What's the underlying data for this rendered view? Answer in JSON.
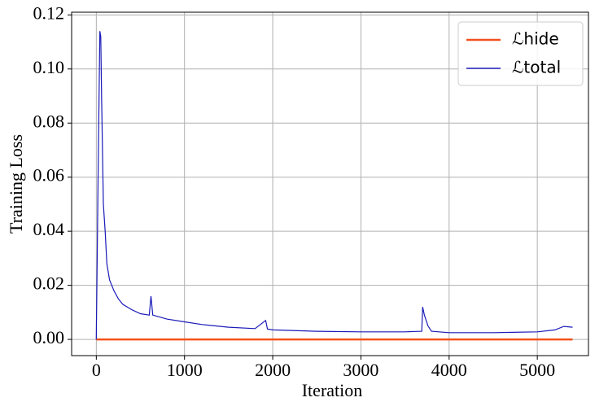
{
  "chart_data": {
    "type": "line",
    "xlabel": "Iteration",
    "ylabel": "Training Loss",
    "xlim": [
      -280,
      5580
    ],
    "ylim": [
      -0.006,
      0.121
    ],
    "xticks": [
      0,
      1000,
      2000,
      3000,
      4000,
      5000
    ],
    "yticks": [
      {
        "value": 0,
        "label": "0.00"
      },
      {
        "value": 0.02,
        "label": "0.02"
      },
      {
        "value": 0.04,
        "label": "0.04"
      },
      {
        "value": 0.06,
        "label": "0.06"
      },
      {
        "value": 0.08,
        "label": "0.08"
      },
      {
        "value": 0.1,
        "label": "0.10"
      },
      {
        "value": 0.12,
        "label": "0.12"
      }
    ],
    "grid": true,
    "legend": "upper right",
    "series": [
      {
        "name": "ℒhide",
        "color": "#f4511e",
        "x": [
          0,
          5400
        ],
        "values": [
          0,
          0
        ]
      },
      {
        "name": "ℒtotal",
        "color": "#1a1ab8",
        "x": [
          0,
          20,
          40,
          50,
          60,
          80,
          100,
          120,
          150,
          200,
          250,
          300,
          400,
          500,
          600,
          620,
          640,
          800,
          1000,
          1200,
          1500,
          1800,
          1920,
          1940,
          2000,
          2500,
          3000,
          3500,
          3690,
          3700,
          3720,
          3760,
          3800,
          4000,
          4500,
          5000,
          5200,
          5300,
          5400
        ],
        "values": [
          0,
          0.06,
          0.114,
          0.112,
          0.09,
          0.05,
          0.04,
          0.028,
          0.022,
          0.018,
          0.015,
          0.013,
          0.011,
          0.0095,
          0.009,
          0.016,
          0.009,
          0.0075,
          0.0065,
          0.0055,
          0.0045,
          0.004,
          0.007,
          0.0038,
          0.0035,
          0.003,
          0.0028,
          0.0028,
          0.003,
          0.012,
          0.009,
          0.005,
          0.003,
          0.0025,
          0.0025,
          0.0028,
          0.0035,
          0.0048,
          0.0045
        ]
      }
    ]
  }
}
